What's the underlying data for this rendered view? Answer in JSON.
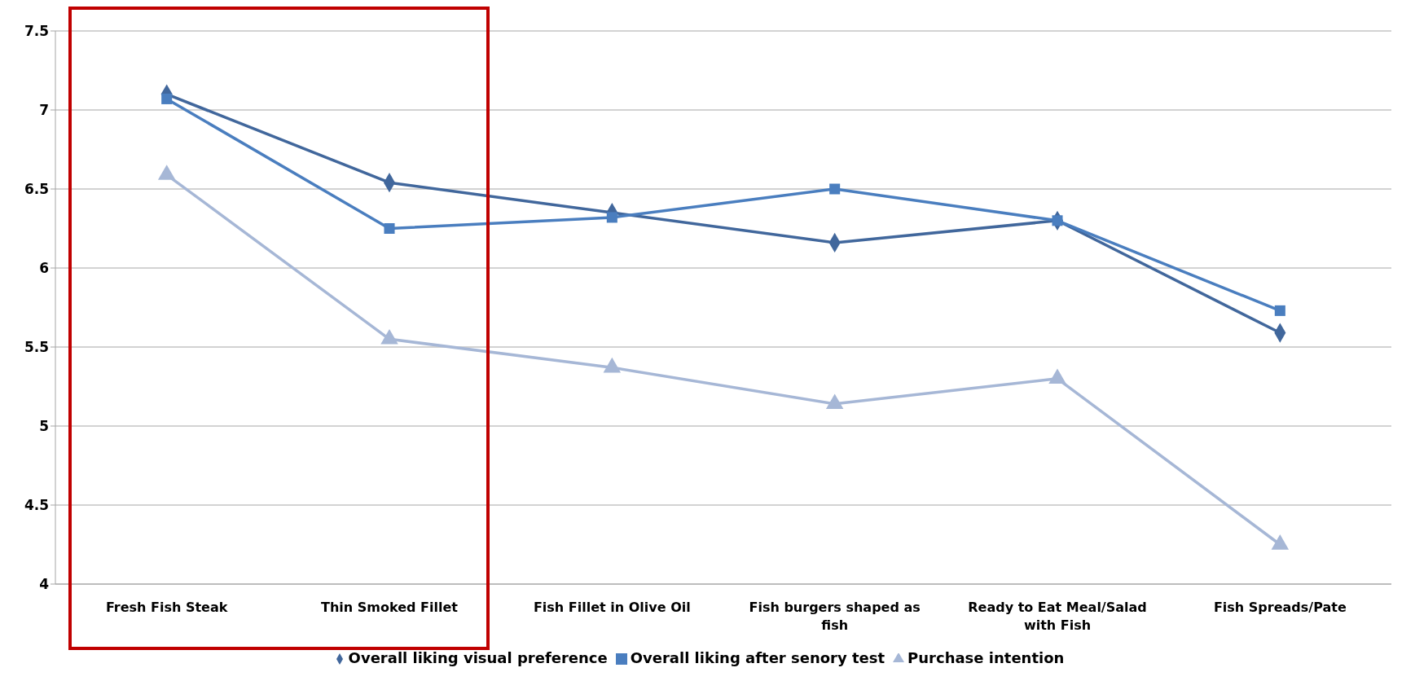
{
  "chart_data": {
    "type": "line",
    "categories": [
      "Fresh Fish Steak",
      "Thin Smoked Fillet",
      "Fish Fillet in Olive Oil",
      "Fish burgers shaped as fish",
      "Ready to Eat Meal/Salad with Fish",
      "Fish Spreads/Pate"
    ],
    "series": [
      {
        "name": "Overall liking visual preference",
        "color": "#41679c",
        "marker": "diamond",
        "values": [
          7.1,
          6.54,
          6.35,
          6.16,
          6.3,
          5.59
        ]
      },
      {
        "name": "Overall liking after senory test",
        "color": "#4a7ebf",
        "marker": "square",
        "values": [
          7.07,
          6.25,
          6.32,
          6.5,
          6.3,
          5.73
        ]
      },
      {
        "name": "Purchase intention",
        "color": "#a6b7d6",
        "marker": "triangle",
        "values": [
          6.59,
          5.55,
          5.37,
          5.14,
          5.3,
          4.25
        ]
      }
    ],
    "ylim": [
      4,
      7.5
    ],
    "yticks": [
      4,
      4.5,
      5,
      5.5,
      6,
      6.5,
      7,
      7.5
    ],
    "grid": "y",
    "legend": "bottom",
    "line_style": "solid"
  }
}
